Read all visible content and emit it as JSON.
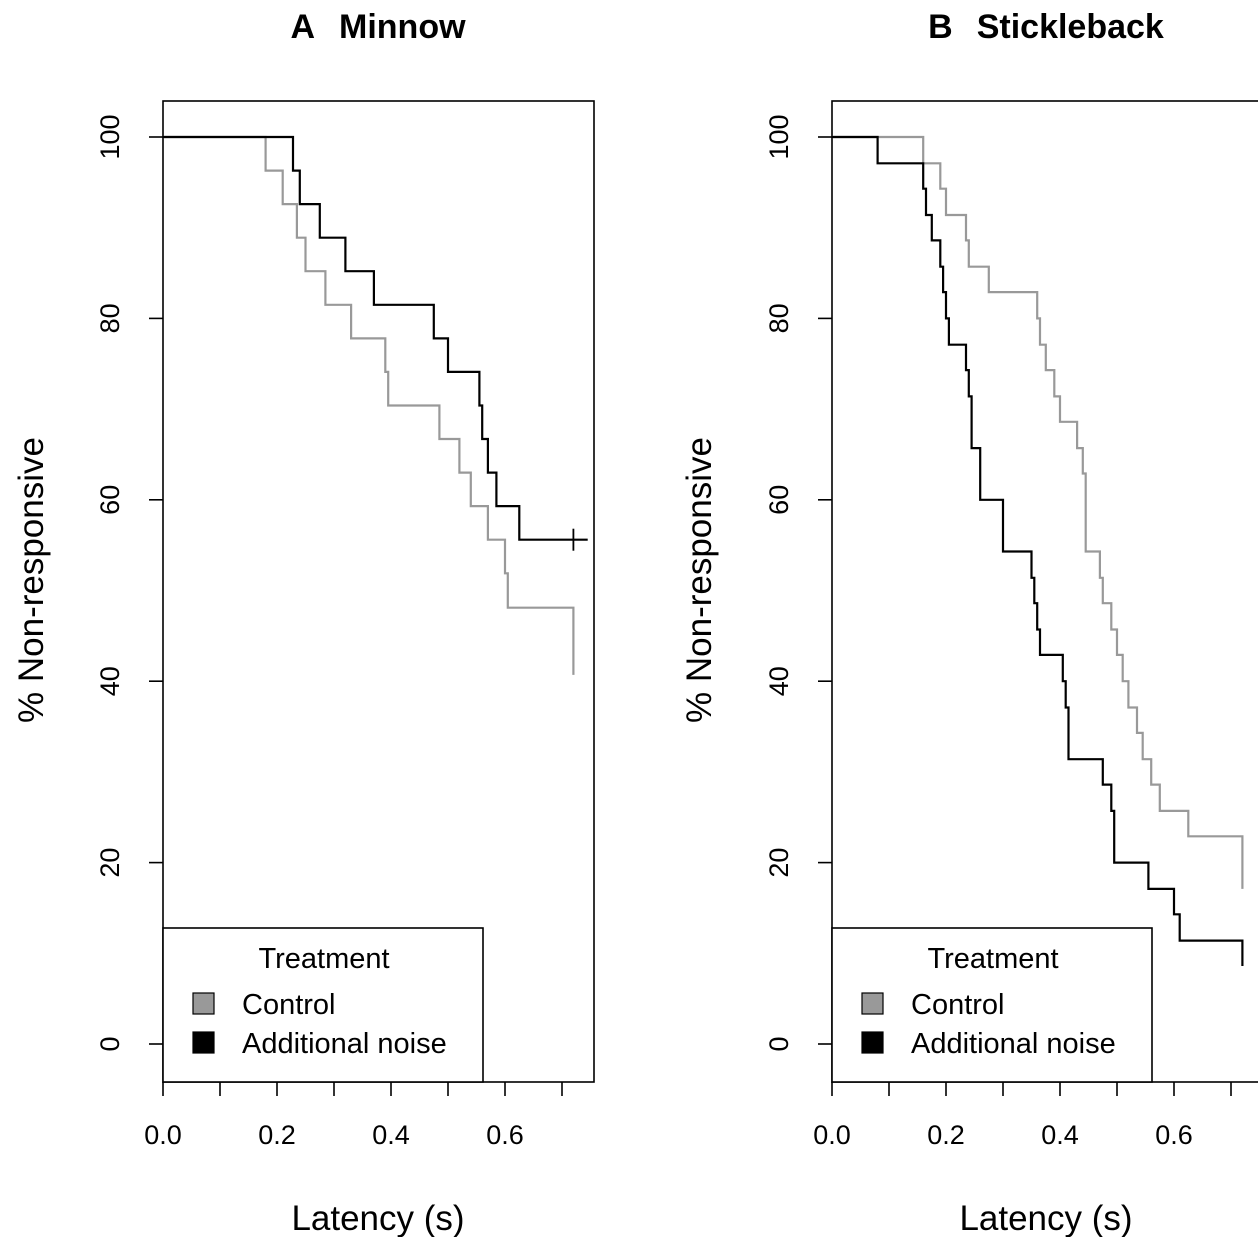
{
  "colors": {
    "control": "#999999",
    "noise": "#000000",
    "axis": "#000000",
    "background": "#ffffff"
  },
  "chart_data": [
    {
      "type": "line",
      "subtype": "kaplan-meier step",
      "panel_letter": "A",
      "panel_name": "Minnow",
      "xlabel": "Latency (s)",
      "ylabel": "% Non-responsive",
      "xlim": [
        0,
        0.75
      ],
      "ylim": [
        -4,
        104
      ],
      "xticks": [
        0.0,
        0.1,
        0.2,
        0.3,
        0.4,
        0.5,
        0.6,
        0.7
      ],
      "xtick_labels": [
        "0.0",
        "0.2",
        "0.4",
        "0.6"
      ],
      "yticks": [
        0,
        20,
        40,
        60,
        80,
        100
      ],
      "ytick_labels": [
        "0",
        "20",
        "40",
        "60",
        "80",
        "100"
      ],
      "grid": false,
      "legend": {
        "title": "Treatment",
        "position": "bottom-left",
        "items": [
          "Control",
          "Additional noise"
        ]
      },
      "series": [
        {
          "name": "Control",
          "color": "#999999",
          "x": [
            0,
            0.18,
            0.21,
            0.235,
            0.25,
            0.285,
            0.33,
            0.39,
            0.395,
            0.485,
            0.52,
            0.54,
            0.57,
            0.6,
            0.605,
            0.61,
            0.72,
            0.72
          ],
          "y": [
            100,
            96.3,
            92.6,
            88.9,
            85.2,
            81.5,
            77.8,
            74.1,
            70.4,
            66.7,
            63.0,
            59.3,
            55.6,
            51.9,
            48.1,
            48.1,
            48.1,
            40.7
          ],
          "censor_x": null
        },
        {
          "name": "Additional noise",
          "color": "#000000",
          "x": [
            0,
            0.228,
            0.235,
            0.24,
            0.275,
            0.32,
            0.37,
            0.475,
            0.5,
            0.555,
            0.56,
            0.565,
            0.57,
            0.585,
            0.6,
            0.625,
            0.72,
            0.745
          ],
          "y": [
            100,
            96.3,
            96.3,
            92.6,
            88.9,
            85.2,
            81.5,
            77.8,
            74.1,
            70.4,
            66.7,
            66.7,
            63.0,
            59.3,
            59.3,
            55.6,
            55.6,
            55.6
          ],
          "censor_x": 0.72
        }
      ]
    },
    {
      "type": "line",
      "subtype": "kaplan-meier step",
      "panel_letter": "B",
      "panel_name": "Stickleback",
      "xlabel": "Latency (s)",
      "ylabel": "% Non-responsive",
      "xlim": [
        0,
        0.75
      ],
      "ylim": [
        -4,
        104
      ],
      "xticks": [
        0.0,
        0.1,
        0.2,
        0.3,
        0.4,
        0.5,
        0.6,
        0.7
      ],
      "xtick_labels": [
        "0.0",
        "0.2",
        "0.4",
        "0.6"
      ],
      "yticks": [
        0,
        20,
        40,
        60,
        80,
        100
      ],
      "ytick_labels": [
        "0",
        "20",
        "40",
        "60",
        "80",
        "100"
      ],
      "grid": false,
      "legend": {
        "title": "Treatment",
        "position": "bottom-left",
        "items": [
          "Control",
          "Additional noise"
        ]
      },
      "series": [
        {
          "name": "Control",
          "color": "#999999",
          "x": [
            0,
            0.16,
            0.19,
            0.2,
            0.235,
            0.24,
            0.275,
            0.36,
            0.365,
            0.375,
            0.39,
            0.4,
            0.405,
            0.43,
            0.44,
            0.445,
            0.47,
            0.475,
            0.49,
            0.5,
            0.51,
            0.52,
            0.535,
            0.545,
            0.56,
            0.575,
            0.59,
            0.6,
            0.625,
            0.67,
            0.72,
            0.72
          ],
          "y": [
            100,
            97.1,
            94.3,
            91.4,
            88.6,
            85.7,
            82.9,
            80.0,
            77.1,
            74.3,
            71.4,
            68.6,
            68.6,
            65.7,
            62.9,
            54.3,
            51.4,
            48.6,
            45.7,
            42.9,
            40.0,
            37.1,
            34.3,
            31.4,
            28.6,
            25.7,
            25.7,
            25.7,
            22.9,
            22.9,
            22.9,
            17.1
          ],
          "censor_x": null
        },
        {
          "name": "Additional noise",
          "color": "#000000",
          "x": [
            0,
            0.08,
            0.16,
            0.165,
            0.175,
            0.19,
            0.195,
            0.2,
            0.205,
            0.235,
            0.24,
            0.245,
            0.25,
            0.26,
            0.26,
            0.3,
            0.35,
            0.355,
            0.36,
            0.365,
            0.37,
            0.405,
            0.41,
            0.415,
            0.42,
            0.475,
            0.49,
            0.495,
            0.555,
            0.6,
            0.61,
            0.72,
            0.72
          ],
          "y": [
            100,
            97.1,
            94.3,
            91.4,
            88.6,
            85.7,
            82.9,
            80.0,
            77.1,
            74.3,
            71.4,
            65.7,
            65.7,
            62.9,
            60.0,
            54.3,
            51.4,
            48.6,
            45.7,
            42.9,
            42.9,
            40.0,
            37.1,
            31.4,
            31.4,
            28.6,
            25.7,
            20.0,
            17.1,
            14.3,
            11.4,
            11.4,
            8.6
          ],
          "censor_x": null
        }
      ]
    }
  ]
}
